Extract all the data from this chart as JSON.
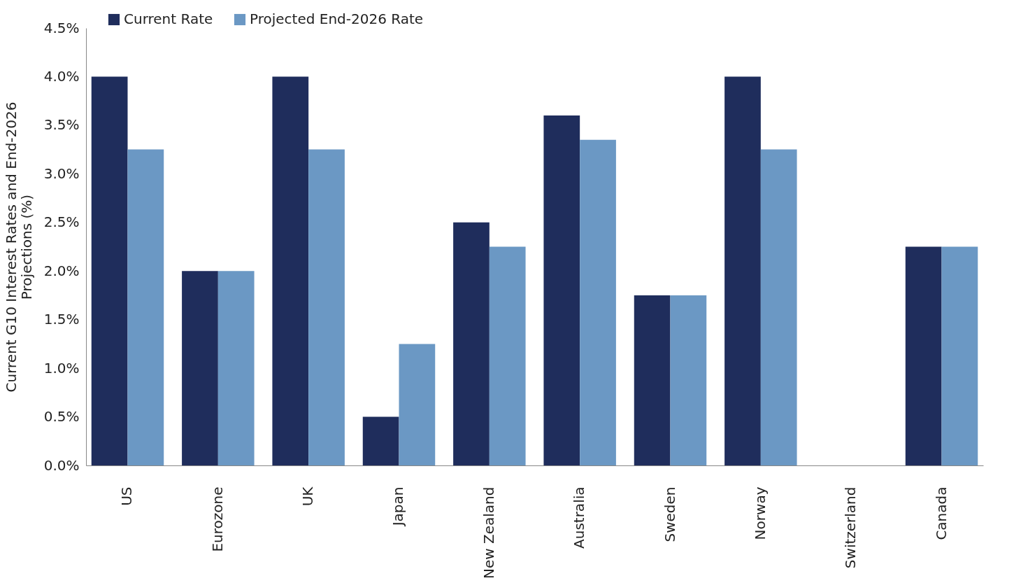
{
  "chart_data": {
    "type": "bar",
    "ylabel": "Current G10 Interest Rates and End-2026 Projections (%)",
    "categories": [
      "US",
      "Eurozone",
      "UK",
      "Japan",
      "New Zealand",
      "Australia",
      "Sweden",
      "Norway",
      "Switzerland",
      "Canada"
    ],
    "series": [
      {
        "name": "Current Rate",
        "color": "#1f2d5c",
        "values": [
          4.0,
          2.0,
          4.0,
          0.5,
          2.5,
          3.6,
          1.75,
          4.0,
          0,
          2.25
        ]
      },
      {
        "name": "Projected End-2026 Rate",
        "color": "#6b98c4",
        "values": [
          3.25,
          2.0,
          3.25,
          1.25,
          2.25,
          3.35,
          1.75,
          3.25,
          0,
          2.25
        ]
      }
    ],
    "ylim": [
      0,
      4.5
    ],
    "yticks": [
      {
        "value": 0,
        "label": "0.0%"
      },
      {
        "value": 0.5,
        "label": "0.5%"
      },
      {
        "value": 1,
        "label": "1.0%"
      },
      {
        "value": 1.5,
        "label": "1.5%"
      },
      {
        "value": 2,
        "label": "2.0%"
      },
      {
        "value": 2.5,
        "label": "2.5%"
      },
      {
        "value": 3,
        "label": "3.0%"
      },
      {
        "value": 3.5,
        "label": "3.5%"
      },
      {
        "value": 4,
        "label": "4.0%"
      },
      {
        "value": 4.5,
        "label": "4.5%"
      }
    ],
    "grid": false,
    "legend": "top left"
  }
}
